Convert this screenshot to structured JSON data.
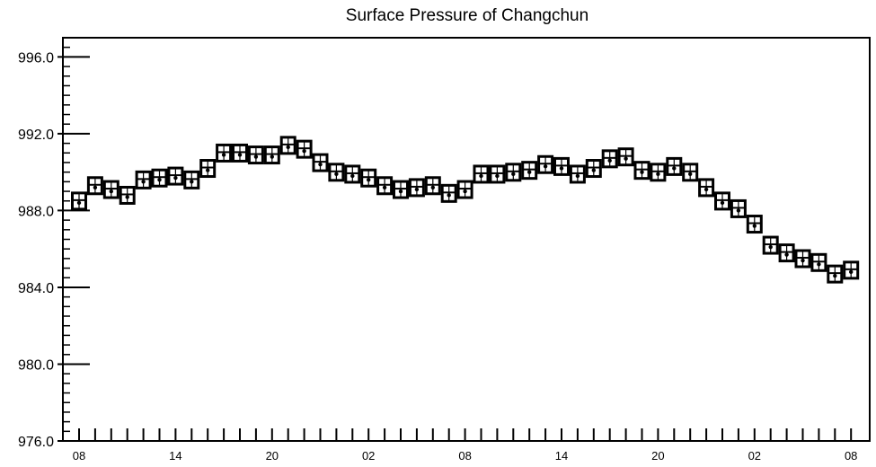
{
  "chart_data": {
    "type": "scatter",
    "title": "Surface Pressure of Changchun",
    "xlabel": "",
    "ylabel": "",
    "ylim": [
      976.0,
      997.0
    ],
    "yticks": [
      "976.0",
      "980.0",
      "984.0",
      "988.0",
      "992.0",
      "996.0"
    ],
    "x_tick_labels": [
      {
        "index": 0,
        "label": "08"
      },
      {
        "index": 6,
        "label": "14"
      },
      {
        "index": 12,
        "label": "20"
      },
      {
        "index": 18,
        "label": "02"
      },
      {
        "index": 24,
        "label": "08"
      },
      {
        "index": 30,
        "label": "14"
      },
      {
        "index": 36,
        "label": "20"
      },
      {
        "index": 42,
        "label": "02"
      },
      {
        "index": 48,
        "label": "08"
      }
    ],
    "values": [
      988.4,
      989.2,
      989.0,
      988.7,
      989.5,
      989.6,
      989.7,
      989.5,
      990.1,
      990.9,
      990.9,
      990.8,
      990.8,
      991.3,
      991.1,
      990.4,
      989.9,
      989.8,
      989.6,
      989.2,
      989.0,
      989.1,
      989.2,
      988.8,
      989.0,
      989.8,
      989.8,
      989.9,
      990.0,
      990.3,
      990.2,
      989.8,
      990.1,
      990.6,
      990.7,
      990.0,
      989.9,
      990.2,
      989.9,
      989.1,
      988.4,
      988.0,
      987.2,
      986.1,
      985.7,
      985.4,
      985.2,
      984.6,
      984.8
    ],
    "grid": false,
    "legend": "none"
  }
}
